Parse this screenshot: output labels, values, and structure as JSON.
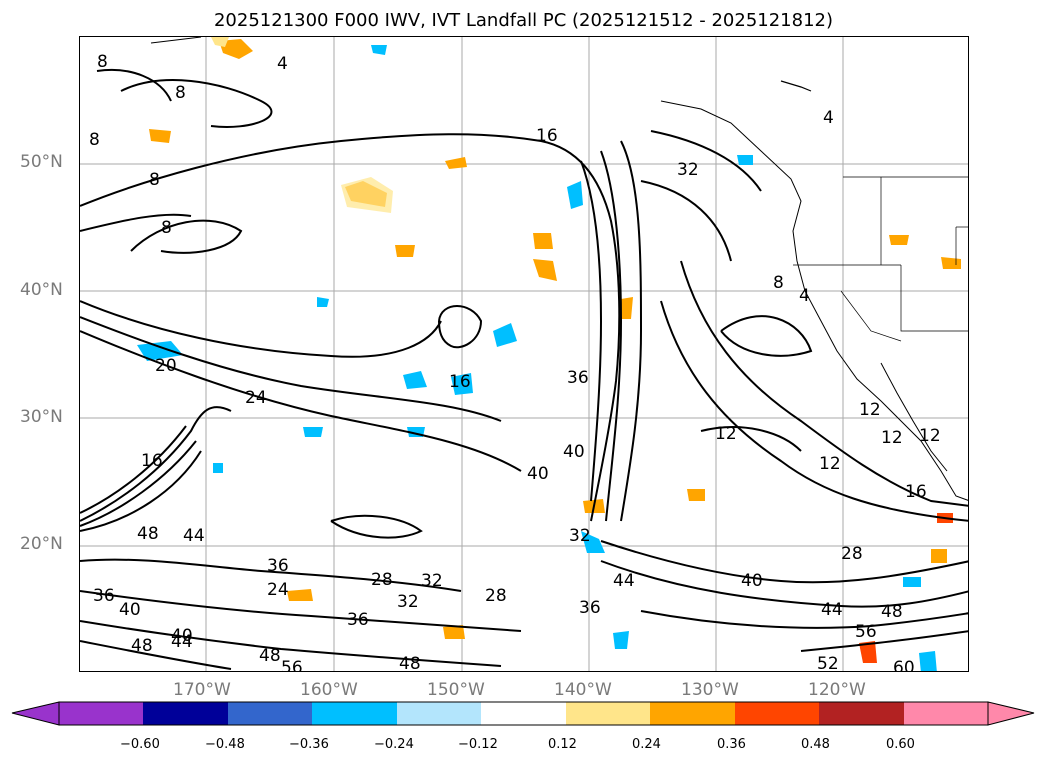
{
  "title": "2025121300 F000 IWV, IVT Landfall PC (2025121512 - 2025121812)",
  "lat_labels": [
    "50°N",
    "40°N",
    "30°N",
    "20°N"
  ],
  "lon_labels": [
    "170°W",
    "160°W",
    "150°W",
    "140°W",
    "130°W",
    "120°W"
  ],
  "colorbar": {
    "ticks": [
      "−0.60",
      "−0.48",
      "−0.36",
      "−0.24",
      "−0.12",
      "0.12",
      "0.24",
      "0.36",
      "0.48",
      "0.60"
    ],
    "colors": [
      "#9933cc",
      "#000099",
      "#3366cc",
      "#00bfff",
      "#b3e5fc",
      "#ffffff",
      "#ffe58a",
      "#ffa500",
      "#ff4500",
      "#b22222",
      "#ff88aa"
    ]
  },
  "contour_labels": [
    "8",
    "8",
    "4",
    "8",
    "8",
    "16",
    "32",
    "8",
    "4",
    "8",
    "4",
    "16",
    "20",
    "24",
    "36",
    "16",
    "12",
    "12",
    "12",
    "12",
    "12",
    "40",
    "40",
    "16",
    "48",
    "44",
    "32",
    "28",
    "32",
    "36",
    "24",
    "28",
    "32",
    "36",
    "40",
    "48",
    "44",
    "28",
    "40",
    "44",
    "48",
    "56",
    "52",
    "60",
    "48",
    "36",
    "36",
    "44",
    "48",
    "56",
    "40"
  ]
}
